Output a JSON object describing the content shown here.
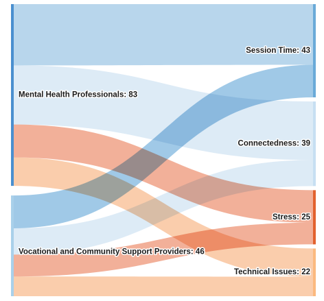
{
  "chart_data": {
    "type": "sankey",
    "title": "",
    "nodes": [
      {
        "id": "mhp",
        "name": "Mental Health Professionals",
        "value": 83,
        "side": "left",
        "color": "#4a8fcf"
      },
      {
        "id": "vcsp",
        "name": "Vocational and Community Support Providers",
        "value": 46,
        "side": "left",
        "color": "#a9d0ea"
      },
      {
        "id": "session",
        "name": "Session Time",
        "value": 43,
        "side": "right",
        "color": "#6aaad8"
      },
      {
        "id": "connect",
        "name": "Connectedness",
        "value": 39,
        "side": "right",
        "color": "#c7dff2"
      },
      {
        "id": "stress",
        "name": "Stress",
        "value": 25,
        "side": "right",
        "color": "#e2622f"
      },
      {
        "id": "tech",
        "name": "Technical Issues",
        "value": 22,
        "side": "right",
        "color": "#fbb97f"
      }
    ],
    "links": [
      {
        "source": "mhp",
        "target": "session",
        "value": 28,
        "color": "#a8cde8"
      },
      {
        "source": "mhp",
        "target": "connect",
        "value": 27,
        "color": "#d5e6f4"
      },
      {
        "source": "mhp",
        "target": "stress",
        "value": 15,
        "color": "#ef9f83"
      },
      {
        "source": "mhp",
        "target": "tech",
        "value": 13,
        "color": "#f9c29a"
      },
      {
        "source": "vcsp",
        "target": "session",
        "value": 15,
        "color": "#8bbde2"
      },
      {
        "source": "vcsp",
        "target": "connect",
        "value": 12,
        "color": "#d5e6f4"
      },
      {
        "source": "vcsp",
        "target": "stress",
        "value": 10,
        "color": "#ef9f83"
      },
      {
        "source": "vcsp",
        "target": "tech",
        "value": 9,
        "color": "#f9c29a"
      }
    ]
  }
}
